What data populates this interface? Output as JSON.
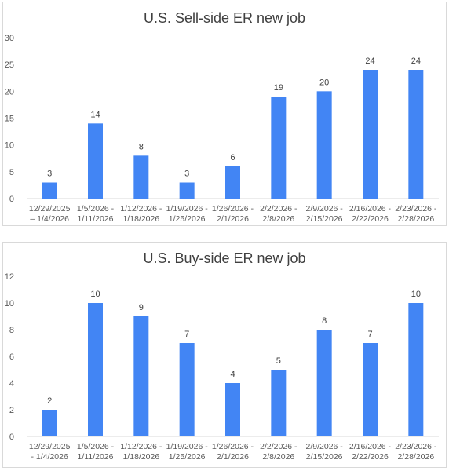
{
  "chart_data": [
    {
      "type": "bar",
      "title": "U.S. Sell-side ER new job",
      "categories": [
        [
          "12/29/2025",
          "– 1/4/2026"
        ],
        [
          "1/5/2026 -",
          "1/11/2026"
        ],
        [
          "1/12/2026 -",
          "1/18/2026"
        ],
        [
          "1/19/2026 -",
          "1/25/2026"
        ],
        [
          "1/26/2026 -",
          "2/1/2026"
        ],
        [
          "2/2/2026 -",
          "2/8/2026"
        ],
        [
          "2/9/2026 -",
          "2/15/2026"
        ],
        [
          "2/16/2026 -",
          "2/22/2026"
        ],
        [
          "2/23/2026 -",
          "2/28/2026"
        ]
      ],
      "values": [
        3,
        14,
        8,
        3,
        6,
        19,
        20,
        24,
        24
      ],
      "ylim": [
        0,
        30
      ],
      "yticks": [
        0,
        5,
        10,
        15,
        20,
        25,
        30
      ],
      "grid": false,
      "bar_color": "#4285f4"
    },
    {
      "type": "bar",
      "title": "U.S. Buy-side ER new job",
      "categories": [
        [
          "12/29/2025",
          "- 1/4/2026"
        ],
        [
          "1/5/2026 -",
          "1/11/2026"
        ],
        [
          "1/12/2026 -",
          "1/18/2026"
        ],
        [
          "1/19/2026 -",
          "1/25/2026"
        ],
        [
          "1/26/2026 -",
          "2/1/2026"
        ],
        [
          "2/2/2026 -",
          "2/8/2026"
        ],
        [
          "2/9/2026 -",
          "2/15/2026"
        ],
        [
          "2/16/2026 -",
          "2/22/2026"
        ],
        [
          "2/23/2026 -",
          "2/28/2026"
        ]
      ],
      "values": [
        2,
        10,
        9,
        7,
        4,
        5,
        8,
        7,
        10
      ],
      "ylim": [
        0,
        12
      ],
      "yticks": [
        0,
        2,
        4,
        6,
        8,
        10,
        12
      ],
      "grid": false,
      "bar_color": "#4285f4"
    }
  ]
}
